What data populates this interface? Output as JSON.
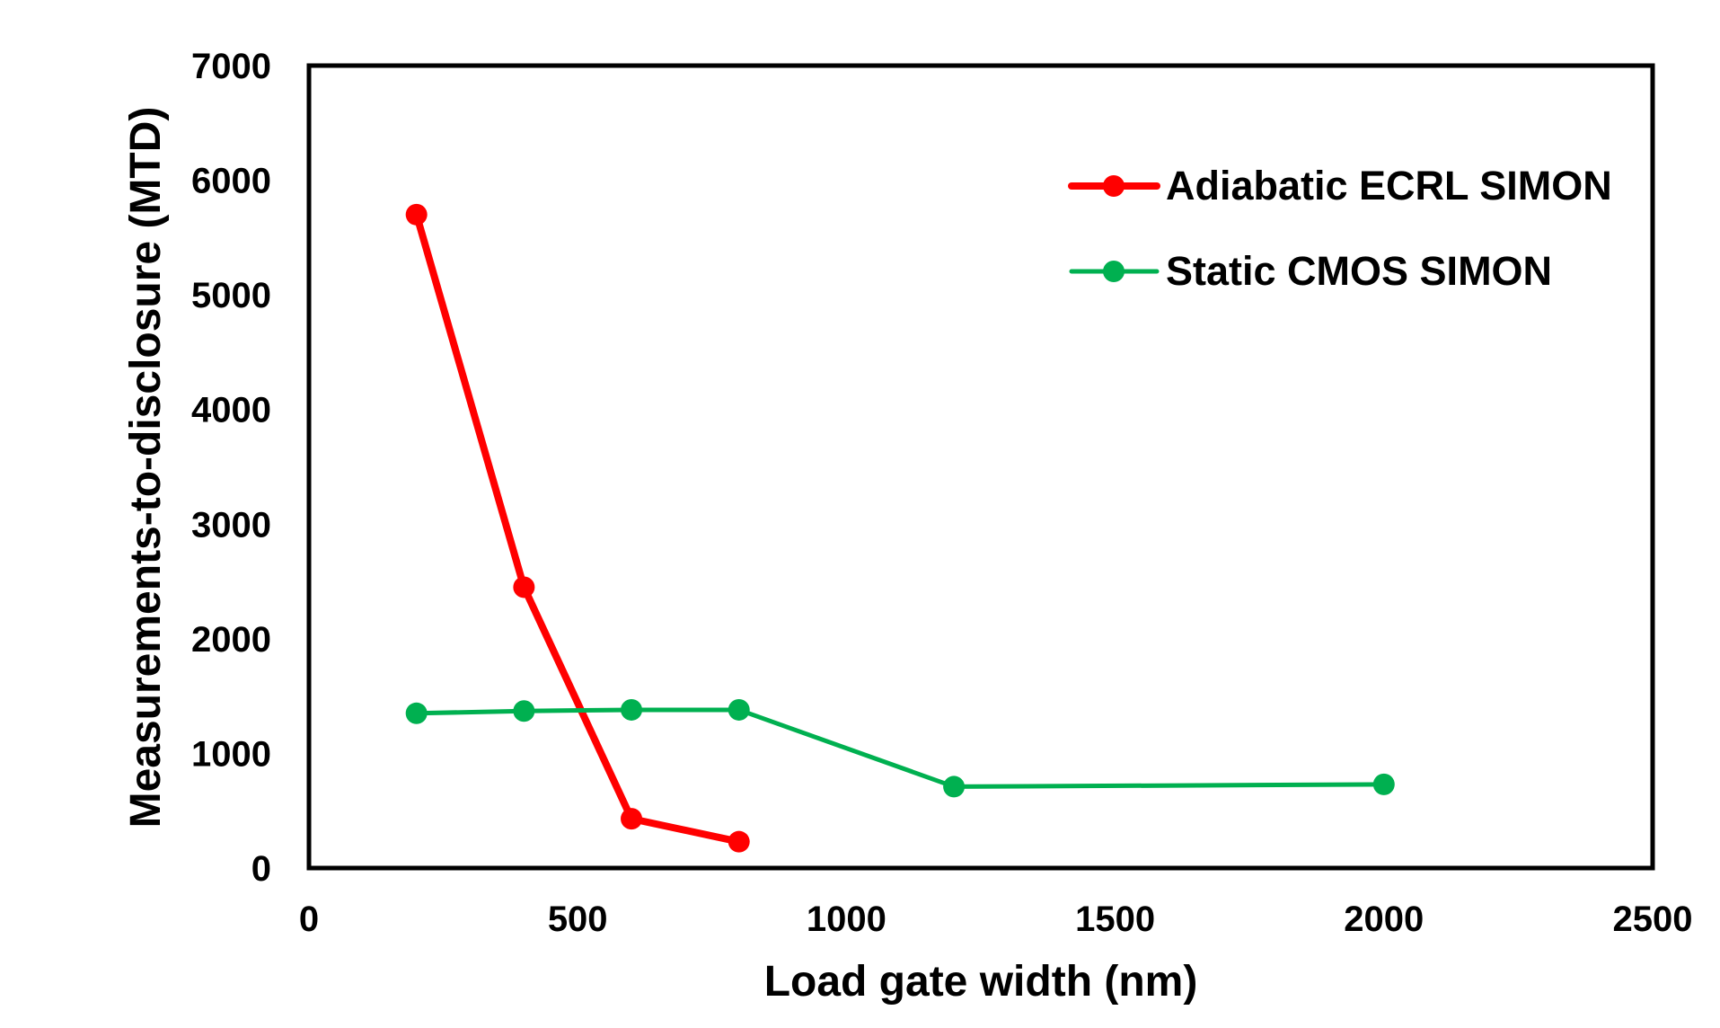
{
  "chart_data": {
    "type": "line",
    "title": "",
    "xlabel": "Load gate width (nm)",
    "ylabel": "Measurements-to-disclosure (MTD)",
    "xlim": [
      0,
      2500
    ],
    "ylim": [
      0,
      7000
    ],
    "xticks": [
      "0",
      "500",
      "1000",
      "1500",
      "2000",
      "2500"
    ],
    "yticks": [
      "0",
      "1000",
      "2000",
      "3000",
      "4000",
      "5000",
      "6000",
      "7000"
    ],
    "grid": false,
    "legend_position": "top-right",
    "series": [
      {
        "name": "Adiabatic ECRL SIMON",
        "color": "#ff0000",
        "x": [
          200,
          400,
          600,
          800
        ],
        "y": [
          5700,
          2450,
          430,
          230
        ]
      },
      {
        "name": "Static CMOS SIMON",
        "color": "#00b050",
        "x": [
          200,
          400,
          600,
          800,
          1200,
          2000
        ],
        "y": [
          1350,
          1370,
          1380,
          1380,
          710,
          730
        ]
      }
    ]
  }
}
